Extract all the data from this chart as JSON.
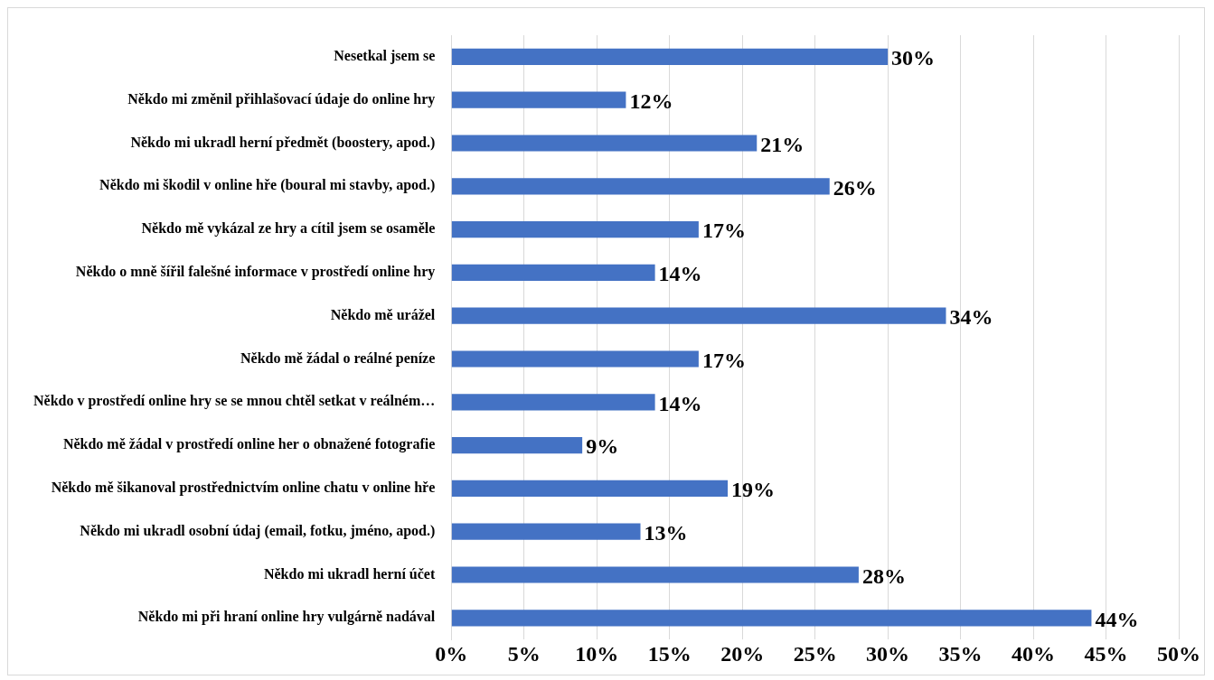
{
  "chart_data": {
    "type": "bar",
    "orientation": "horizontal",
    "categories": [
      "Nesetkal jsem se",
      "Někdo mi změnil přihlašovací údaje do online hry",
      "Někdo mi ukradl herní předmět (boostery, apod.)",
      "Někdo mi škodil v online hře (boural mi stavby, apod.)",
      "Někdo mě vykázal ze hry a cítil jsem se osaměle",
      "Někdo o mně šířil falešné informace v prostředí online hry",
      "Někdo mě urážel",
      "Někdo mě žádal o reálné peníze",
      "Někdo v prostředí online hry se se mnou chtěl setkat v reálném…",
      "Někdo mě žádal v prostředí online her o obnažené fotografie",
      "Někdo mě šikanoval prostřednictvím online chatu v online hře",
      "Někdo mi ukradl osobní údaj (email, fotku, jméno, apod.)",
      "Někdo mi ukradl herní účet",
      "Někdo mi při hraní online hry vulgárně nadával"
    ],
    "values": [
      30,
      12,
      21,
      26,
      17,
      14,
      34,
      17,
      14,
      9,
      19,
      13,
      28,
      44
    ],
    "value_labels": [
      "30%",
      "12%",
      "21%",
      "26%",
      "17%",
      "14%",
      "34%",
      "17%",
      "14%",
      "9%",
      "19%",
      "13%",
      "28%",
      "44%"
    ],
    "color": "#4472c4",
    "xlim": [
      0,
      50
    ],
    "xticks": [
      {
        "value": 0,
        "label": "0%"
      },
      {
        "value": 5,
        "label": "5%"
      },
      {
        "value": 10,
        "label": "10%"
      },
      {
        "value": 15,
        "label": "15%"
      },
      {
        "value": 20,
        "label": "20%"
      },
      {
        "value": 25,
        "label": "25%"
      },
      {
        "value": 30,
        "label": "30%"
      },
      {
        "value": 35,
        "label": "35%"
      },
      {
        "value": 40,
        "label": "40%"
      },
      {
        "value": 45,
        "label": "45%"
      },
      {
        "value": 50,
        "label": "50%"
      }
    ],
    "grid": "x",
    "legend": false
  }
}
